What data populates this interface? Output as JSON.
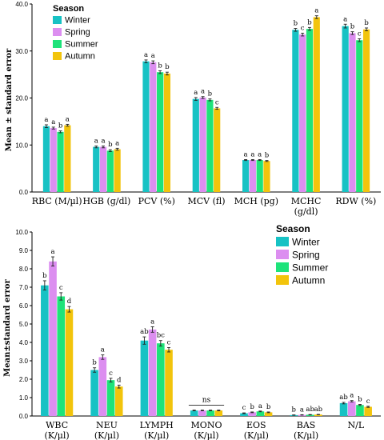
{
  "colors": {
    "Winter": "#17c2c4",
    "Spring": "#dc8ef0",
    "Summer": "#1ee37a",
    "Autumn": "#f2c40c",
    "axis": "#000000",
    "error": "#222222"
  },
  "chart_data": [
    {
      "type": "bar",
      "ylabel": "Mean ± standard error",
      "ylim": [
        0,
        40
      ],
      "yticks": [
        "0.0",
        "10.0",
        "20.0",
        "30.0",
        "40.0"
      ],
      "legend": {
        "title": "Season",
        "position": "top-left",
        "labels": [
          "Winter",
          "Spring",
          "Summer",
          "Autumn"
        ]
      },
      "categories": [
        {
          "line1": "RBC (M/µl)",
          "line2": ""
        },
        {
          "line1": "HGB (g/dl)",
          "line2": ""
        },
        {
          "line1": "PCV (%)",
          "line2": ""
        },
        {
          "line1": "MCV (fl)",
          "line2": ""
        },
        {
          "line1": "MCH (pg)",
          "line2": ""
        },
        {
          "line1": "MCHC",
          "line2": "(g/dl)"
        },
        {
          "line1": "RDW (%)",
          "line2": ""
        }
      ],
      "series": [
        {
          "name": "Winter",
          "values": [
            14.0,
            9.6,
            27.8,
            19.8,
            6.8,
            34.5,
            35.3
          ],
          "errors": [
            0.3,
            0.2,
            0.3,
            0.3,
            0.1,
            0.3,
            0.4
          ]
        },
        {
          "name": "Spring",
          "values": [
            13.6,
            9.6,
            27.6,
            20.1,
            6.8,
            33.5,
            33.8
          ],
          "errors": [
            0.2,
            0.2,
            0.3,
            0.2,
            0.1,
            0.3,
            0.3
          ]
        },
        {
          "name": "Summer",
          "values": [
            12.8,
            8.8,
            25.5,
            19.6,
            6.8,
            34.7,
            32.3
          ],
          "errors": [
            0.2,
            0.2,
            0.3,
            0.2,
            0.1,
            0.3,
            0.3
          ]
        },
        {
          "name": "Autumn",
          "values": [
            14.2,
            9.1,
            25.2,
            17.8,
            6.6,
            37.2,
            34.6
          ],
          "errors": [
            0.2,
            0.2,
            0.3,
            0.2,
            0.1,
            0.3,
            0.3
          ]
        }
      ],
      "annotations": [
        [
          "a",
          "a",
          "b",
          "a"
        ],
        [
          "a",
          "a",
          "b",
          "a"
        ],
        [
          "a",
          "a",
          "b",
          "b"
        ],
        [
          "a",
          "a",
          "b",
          "c"
        ],
        [
          "a",
          "a",
          "a",
          "b"
        ],
        [
          "b",
          "c",
          "b",
          "a"
        ],
        [
          "a",
          "b",
          "c",
          "b"
        ]
      ]
    },
    {
      "type": "bar",
      "ylabel": "Mean±standard error",
      "ylim": [
        0,
        10
      ],
      "yticks": [
        "0.0",
        "1.0",
        "2.0",
        "3.0",
        "4.0",
        "5.0",
        "6.0",
        "7.0",
        "8.0",
        "9.0",
        "10.0"
      ],
      "legend": {
        "title": "Season",
        "position": "top-right",
        "labels": [
          "Winter",
          "Spring",
          "Summer",
          "Autumn"
        ]
      },
      "categories": [
        {
          "line1": "WBC",
          "line2": "(K/µl)"
        },
        {
          "line1": "NEU",
          "line2": "(K/µl)"
        },
        {
          "line1": "LYMPH",
          "line2": "(K/µl)"
        },
        {
          "line1": "MONO",
          "line2": "(K/µl)"
        },
        {
          "line1": "EOS",
          "line2": "(K/µl)"
        },
        {
          "line1": "BAS",
          "line2": "(K/µl)"
        },
        {
          "line1": "N/L",
          "line2": ""
        }
      ],
      "series": [
        {
          "name": "Winter",
          "values": [
            7.1,
            2.5,
            4.1,
            0.3,
            0.15,
            0.05,
            0.7
          ],
          "errors": [
            0.25,
            0.12,
            0.2,
            0.02,
            0.02,
            0.01,
            0.04
          ]
        },
        {
          "name": "Spring",
          "values": [
            8.4,
            3.2,
            4.7,
            0.3,
            0.2,
            0.06,
            0.8
          ],
          "errors": [
            0.25,
            0.12,
            0.15,
            0.02,
            0.02,
            0.01,
            0.04
          ]
        },
        {
          "name": "Summer",
          "values": [
            6.5,
            1.95,
            3.95,
            0.3,
            0.25,
            0.07,
            0.6
          ],
          "errors": [
            0.2,
            0.1,
            0.15,
            0.02,
            0.02,
            0.01,
            0.03
          ]
        },
        {
          "name": "Autumn",
          "values": [
            5.8,
            1.6,
            3.6,
            0.3,
            0.2,
            0.08,
            0.5
          ],
          "errors": [
            0.15,
            0.08,
            0.12,
            0.02,
            0.02,
            0.01,
            0.03
          ]
        }
      ],
      "annotations": [
        [
          "b",
          "a",
          "c",
          "d"
        ],
        [
          "b",
          "a",
          "c",
          "d"
        ],
        [
          "ab",
          "a",
          "bc",
          "c"
        ],
        [
          "",
          "",
          "",
          ""
        ],
        [
          "c",
          "b",
          "a",
          "b"
        ],
        [
          "b",
          "a",
          "ab",
          "ab"
        ],
        [
          "ab",
          "a",
          "b",
          "c"
        ]
      ],
      "group_annotations": [
        {
          "category_index": 3,
          "text": "ns"
        }
      ]
    }
  ]
}
